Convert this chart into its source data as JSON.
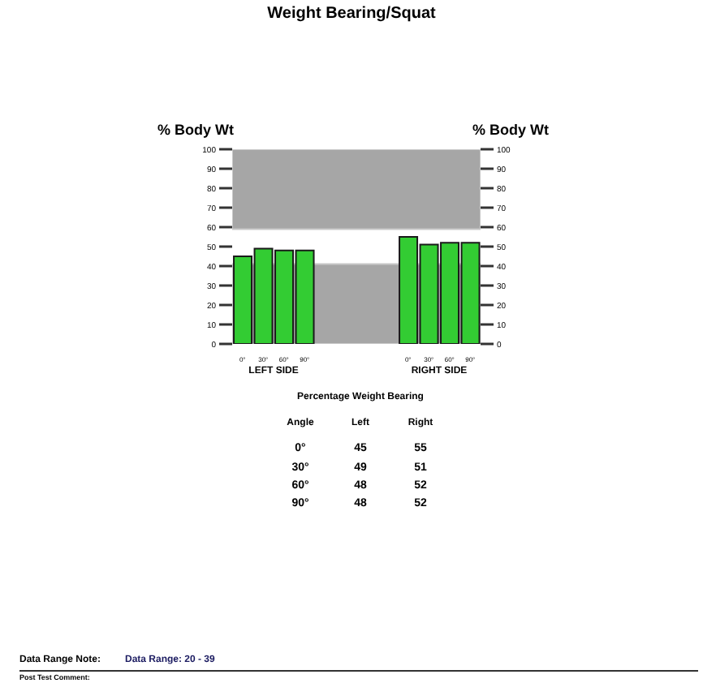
{
  "chart_data": {
    "type": "bar",
    "title": "Weight Bearing/Squat",
    "categories": [
      "0°",
      "30°",
      "60°",
      "90°",
      null,
      null,
      null,
      null,
      "0°",
      "30°",
      "60°",
      "90°"
    ],
    "values": [
      45,
      49,
      48,
      48,
      null,
      null,
      null,
      null,
      55,
      51,
      52,
      52
    ],
    "color": "#33cc33",
    "ylabel": "% Body Wt",
    "y2label": "% Body Wt",
    "ylim": [
      0,
      100
    ],
    "yticks": [
      0,
      10,
      20,
      30,
      40,
      50,
      60,
      70,
      80,
      90,
      100
    ],
    "y2lim": [
      0,
      100
    ],
    "y2ticks": [
      0,
      10,
      20,
      30,
      40,
      50,
      60,
      70,
      80,
      90,
      100
    ],
    "bands": [
      {
        "axis": "y",
        "from": 0,
        "to": 41,
        "color": "#a6a6a6"
      },
      {
        "axis": "y",
        "from": 59,
        "to": 100,
        "color": "#a6a6a6"
      }
    ],
    "annotations": [
      "LEFT SIDE",
      "RIGHT SIDE",
      "Percentage Weight Bearing",
      "Angle",
      "Left",
      "Right",
      "0°",
      "45",
      "55",
      "30°",
      "49",
      "51",
      "60°",
      "48",
      "52",
      "90°",
      "48",
      "52",
      "Data Range Note:",
      "Data Range: 20 - 39",
      "Post Test Comment:"
    ]
  }
}
